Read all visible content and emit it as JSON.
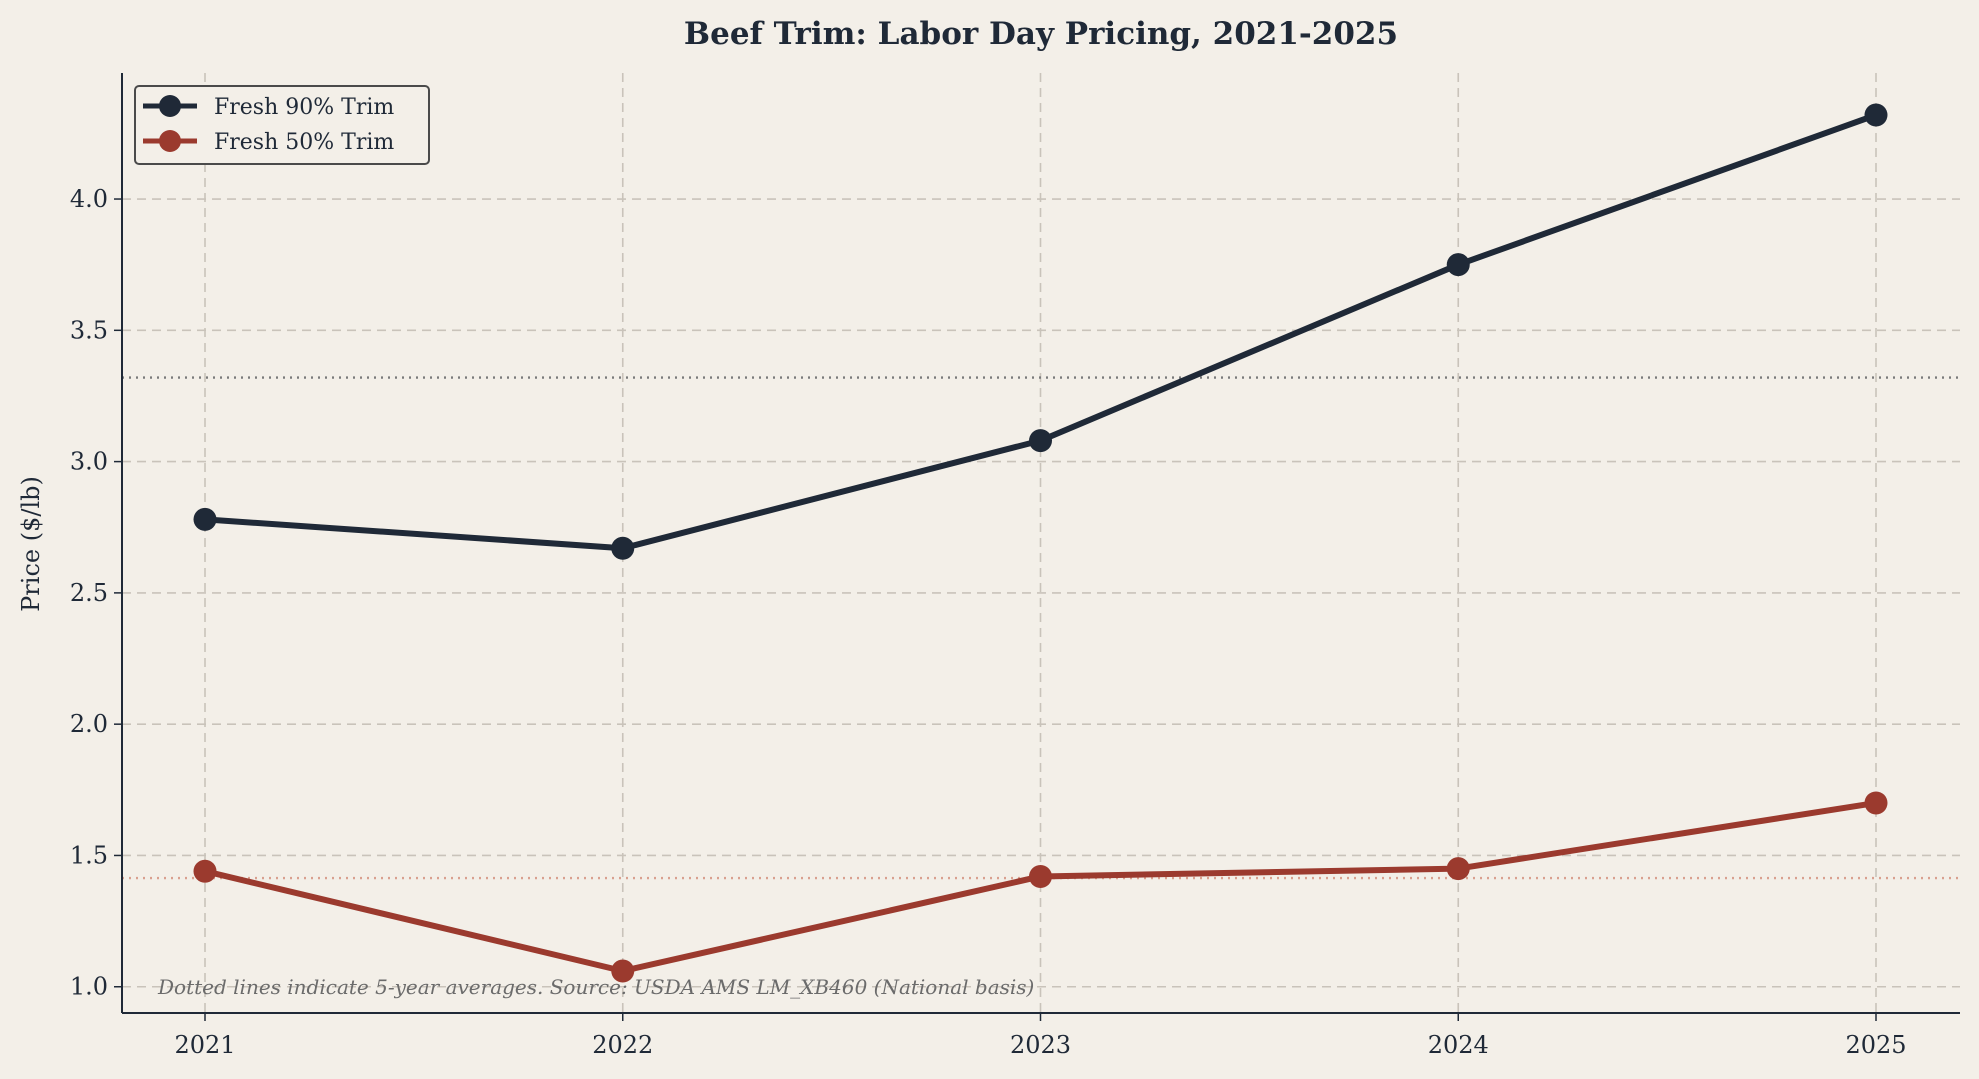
{
  "chart_data": {
    "type": "line",
    "title": "Beef Trim: Labor Day Pricing, 2021-2025",
    "xlabel": "",
    "ylabel": "Price ($/lb)",
    "x": [
      "2021",
      "2022",
      "2023",
      "2024",
      "2025"
    ],
    "yticks": [
      "1.0",
      "1.5",
      "2.0",
      "2.5",
      "3.0",
      "3.5",
      "4.0"
    ],
    "ylim": [
      0.9,
      4.48
    ],
    "grid": true,
    "legend_position": "top-left",
    "series": [
      {
        "name": "Fresh 90% Trim",
        "color": "#1f2937",
        "values": [
          2.78,
          2.67,
          3.08,
          3.75,
          4.32
        ],
        "average": 3.32
      },
      {
        "name": "Fresh 50% Trim",
        "color": "#9b3a2e",
        "values": [
          1.44,
          1.06,
          1.42,
          1.45,
          1.7
        ],
        "average": 1.414
      }
    ],
    "annotation": "Dotted lines indicate 5-year averages. Source: USDA AMS LM_XB460 (National basis)"
  }
}
